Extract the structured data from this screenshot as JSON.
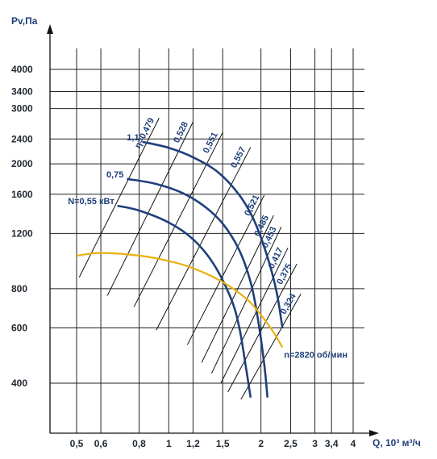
{
  "chart_data": {
    "type": "line",
    "title": "",
    "xlabel": "Q, 10³ м³/ч",
    "ylabel": "Pv,Па",
    "x_scale": "log",
    "y_scale": "log",
    "xlim": [
      0.4,
      4.4
    ],
    "ylim": [
      320,
      5200
    ],
    "x_ticks": [
      "0,5",
      "0,6",
      "0,8",
      "1",
      "1,2",
      "1,5",
      "2",
      "2,5",
      "3",
      "3,4",
      "4"
    ],
    "y_ticks": [
      "400",
      "600",
      "800",
      "1200",
      "1600",
      "2000",
      "2400",
      "3000",
      "3400",
      "4000"
    ],
    "grid": true,
    "colors": {
      "grid": "#222222",
      "power_curve": "#1f3f7a",
      "fan_curve": "#e8b10e",
      "efficiency_line": "#111111",
      "text": "#1f3f7a"
    },
    "fan_curve": {
      "label": "n=2820 об/мин",
      "points": [
        [
          0.5,
          1020
        ],
        [
          0.6,
          1040
        ],
        [
          0.8,
          1020
        ],
        [
          1.0,
          980
        ],
        [
          1.2,
          930
        ],
        [
          1.5,
          840
        ],
        [
          1.8,
          740
        ],
        [
          2.0,
          660
        ],
        [
          2.2,
          580
        ],
        [
          2.35,
          520
        ]
      ]
    },
    "power_curves": [
      {
        "label": "N=0,55 кВт",
        "points": [
          [
            0.68,
            1470
          ],
          [
            0.8,
            1420
          ],
          [
            1.0,
            1300
          ],
          [
            1.2,
            1150
          ],
          [
            1.4,
            960
          ],
          [
            1.6,
            740
          ],
          [
            1.7,
            600
          ],
          [
            1.78,
            460
          ],
          [
            1.85,
            360
          ]
        ]
      },
      {
        "label": "0,75",
        "points": [
          [
            0.73,
            1790
          ],
          [
            0.9,
            1730
          ],
          [
            1.1,
            1620
          ],
          [
            1.3,
            1470
          ],
          [
            1.5,
            1290
          ],
          [
            1.7,
            1060
          ],
          [
            1.85,
            840
          ],
          [
            1.95,
            650
          ],
          [
            2.05,
            460
          ],
          [
            2.1,
            360
          ]
        ]
      },
      {
        "label": "1,1",
        "points": [
          [
            0.82,
            2350
          ],
          [
            1.0,
            2250
          ],
          [
            1.2,
            2100
          ],
          [
            1.45,
            1880
          ],
          [
            1.7,
            1590
          ],
          [
            1.9,
            1320
          ],
          [
            2.1,
            1010
          ],
          [
            2.25,
            780
          ],
          [
            2.35,
            600
          ]
        ]
      }
    ],
    "efficiency_lines": [
      {
        "label": "η=0,479",
        "from": [
          0.51,
          870
        ],
        "to": [
          0.93,
          2800
        ]
      },
      {
        "label": "0,528",
        "from": [
          0.63,
          760
        ],
        "to": [
          1.2,
          2720
        ]
      },
      {
        "label": "0,551",
        "from": [
          0.77,
          700
        ],
        "to": [
          1.5,
          2520
        ]
      },
      {
        "label": "0,557",
        "from": [
          0.91,
          590
        ],
        "to": [
          1.85,
          2260
        ]
      },
      {
        "label": "0,521",
        "from": [
          1.15,
          530
        ],
        "to": [
          2.05,
          1590
        ]
      },
      {
        "label": "0,485",
        "from": [
          1.28,
          465
        ],
        "to": [
          2.2,
          1370
        ]
      },
      {
        "label": "0,453",
        "from": [
          1.38,
          430
        ],
        "to": [
          2.33,
          1260
        ]
      },
      {
        "label": "0,417",
        "from": [
          1.48,
          400
        ],
        "to": [
          2.45,
          1080
        ]
      },
      {
        "label": "0,375",
        "from": [
          1.56,
          375
        ],
        "to": [
          2.62,
          960
        ]
      },
      {
        "label": "0,324",
        "from": [
          1.72,
          355
        ],
        "to": [
          2.7,
          770
        ]
      }
    ]
  }
}
